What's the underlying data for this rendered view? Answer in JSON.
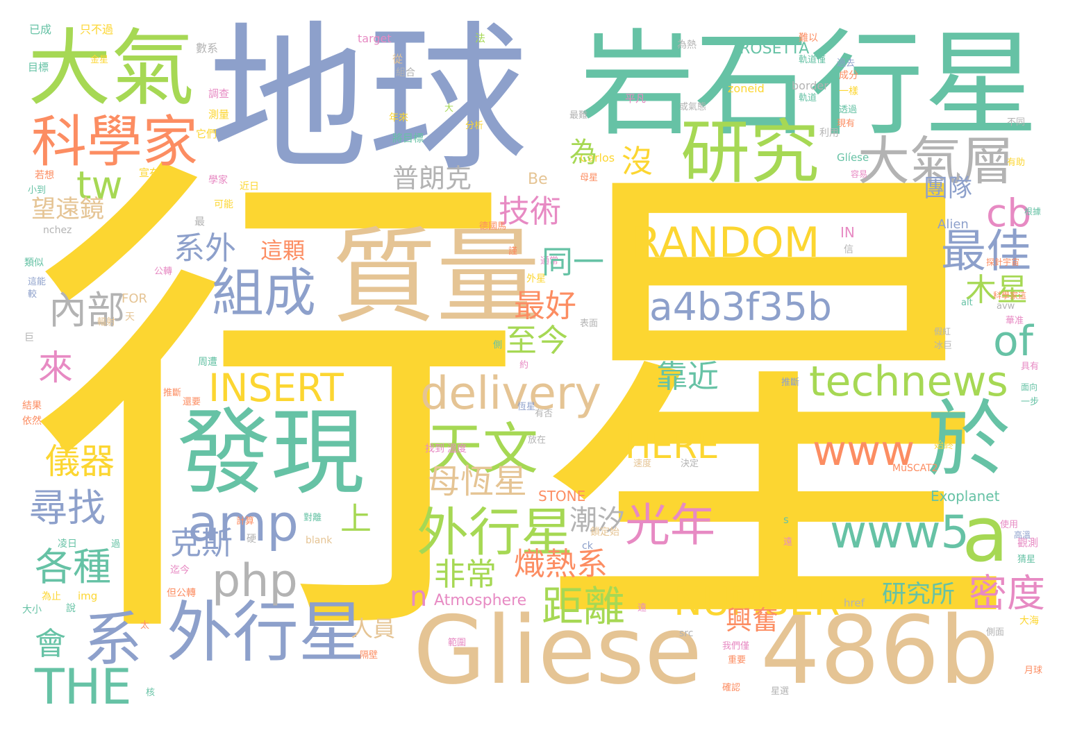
{
  "palette": {
    "yellow": "#fcd631",
    "blue": "#8da0cb",
    "green": "#66c2a5",
    "lime": "#a6d854",
    "tan": "#e5c494",
    "orange": "#fc8d62",
    "pink": "#e78ac3",
    "gray": "#b3b3b3"
  },
  "words": [
    {
      "text": "行星",
      "color": "yellow"
    },
    {
      "text": "地球",
      "color": "blue"
    },
    {
      "text": "岩石行星",
      "color": "green"
    },
    {
      "text": "Gliese",
      "color": "tan"
    },
    {
      "text": "486b",
      "color": "tan"
    },
    {
      "text": "大氣",
      "color": "lime"
    },
    {
      "text": "質量",
      "color": "tan"
    },
    {
      "text": "發現",
      "color": "green"
    },
    {
      "text": "研究",
      "color": "lime"
    },
    {
      "text": "科學家",
      "color": "orange"
    },
    {
      "text": "大氣層",
      "color": "gray"
    },
    {
      "text": "外行星",
      "color": "blue"
    },
    {
      "text": "系",
      "color": "blue"
    },
    {
      "text": "組成",
      "color": "blue"
    },
    {
      "text": "於",
      "color": "green"
    },
    {
      "text": "a",
      "color": "lime"
    },
    {
      "text": "RANDOM",
      "color": "yellow"
    },
    {
      "text": "a4b3f35b",
      "color": "blue"
    },
    {
      "text": "technews",
      "color": "lime"
    },
    {
      "text": "delivery",
      "color": "tan"
    },
    {
      "text": "www5",
      "color": "green"
    },
    {
      "text": "amp",
      "color": "blue"
    },
    {
      "text": "外行星",
      "color": "lime"
    },
    {
      "text": "天文",
      "color": "lime"
    },
    {
      "text": "www",
      "color": "orange"
    },
    {
      "text": "INSERT",
      "color": "yellow"
    },
    {
      "text": "NUMBER",
      "color": "yellow"
    },
    {
      "text": "HERE",
      "color": "yellow"
    },
    {
      "text": "THE",
      "color": "green"
    },
    {
      "text": "php",
      "color": "gray"
    },
    {
      "text": "tw",
      "color": "lime"
    },
    {
      "text": "cb",
      "color": "pink"
    },
    {
      "text": "of",
      "color": "green"
    },
    {
      "text": "最佳",
      "color": "blue"
    },
    {
      "text": "光年",
      "color": "pink"
    },
    {
      "text": "距離",
      "color": "lime"
    },
    {
      "text": "密度",
      "color": "pink"
    },
    {
      "text": "尋找",
      "color": "blue"
    },
    {
      "text": "內部",
      "color": "gray"
    },
    {
      "text": "系外",
      "color": "blue"
    },
    {
      "text": "技術",
      "color": "pink"
    },
    {
      "text": "母恆星",
      "color": "tan"
    },
    {
      "text": "普朗克",
      "color": "gray"
    },
    {
      "text": "靠近",
      "color": "green"
    },
    {
      "text": "至今",
      "color": "lime"
    },
    {
      "text": "各種",
      "color": "green"
    },
    {
      "text": "非常",
      "color": "lime"
    },
    {
      "text": "克斯",
      "color": "blue"
    },
    {
      "text": "儀器",
      "color": "yellow"
    },
    {
      "text": "來",
      "color": "pink"
    },
    {
      "text": "沒",
      "color": "yellow"
    },
    {
      "text": "木星",
      "color": "lime"
    },
    {
      "text": "望遠鏡",
      "color": "tan"
    },
    {
      "text": "團隊",
      "color": "blue"
    },
    {
      "text": "研究所",
      "color": "green"
    },
    {
      "text": "興奮",
      "color": "orange"
    },
    {
      "text": "Exoplanet",
      "color": "green"
    },
    {
      "text": "n",
      "color": "pink"
    },
    {
      "text": "上",
      "color": "lime"
    },
    {
      "text": "會",
      "color": "green"
    },
    {
      "text": "這顆",
      "color": "orange"
    },
    {
      "text": "人員",
      "color": "tan"
    },
    {
      "text": "Atmosphere",
      "color": "pink"
    },
    {
      "text": "ROSETTA",
      "color": "green"
    },
    {
      "text": "STONE",
      "color": "orange"
    },
    {
      "text": "Alien",
      "color": "blue"
    },
    {
      "text": "MuSCAT2",
      "color": "orange"
    },
    {
      "text": "target",
      "color": "pink"
    },
    {
      "text": "zoneid",
      "color": "yellow"
    },
    {
      "text": "border",
      "color": "gray"
    },
    {
      "text": "Carlos",
      "color": "yellow"
    },
    {
      "text": "Glíese",
      "color": "green"
    },
    {
      "text": "nchez",
      "color": "gray"
    },
    {
      "text": "FOR",
      "color": "tan"
    },
    {
      "text": "IN",
      "color": "pink"
    },
    {
      "text": "href",
      "color": "gray"
    },
    {
      "text": "src",
      "color": "gray"
    },
    {
      "text": "blank",
      "color": "tan"
    },
    {
      "text": "img",
      "color": "yellow"
    },
    {
      "text": "ck",
      "color": "blue"
    },
    {
      "text": "alt",
      "color": "green"
    },
    {
      "text": "avw",
      "color": "gray"
    },
    {
      "text": "Be",
      "color": "tan"
    },
    {
      "text": "已成",
      "color": "green"
    },
    {
      "text": "只不過",
      "color": "yellow"
    },
    {
      "text": "數系",
      "color": "gray"
    },
    {
      "text": "目標",
      "color": "green"
    },
    {
      "text": "金星",
      "color": "yellow"
    },
    {
      "text": "組合",
      "color": "gray"
    },
    {
      "text": "調查",
      "color": "pink"
    },
    {
      "text": "測量",
      "color": "yellow"
    },
    {
      "text": "它們",
      "color": "yellow"
    },
    {
      "text": "年來",
      "color": "yellow"
    },
    {
      "text": "將目標",
      "color": "green"
    },
    {
      "text": "分析",
      "color": "yellow"
    },
    {
      "text": "宣布",
      "color": "yellow"
    },
    {
      "text": "若想",
      "color": "orange"
    },
    {
      "text": "小到",
      "color": "green"
    },
    {
      "text": "學家",
      "color": "pink"
    },
    {
      "text": "近日",
      "color": "yellow"
    },
    {
      "text": "可能",
      "color": "yellow"
    },
    {
      "text": "類似",
      "color": "green"
    },
    {
      "text": "這能",
      "color": "blue"
    },
    {
      "text": "較",
      "color": "blue"
    },
    {
      "text": "公轉",
      "color": "pink"
    },
    {
      "text": "巨",
      "color": "gray"
    },
    {
      "text": "天",
      "color": "tan"
    },
    {
      "text": "輻射",
      "color": "tan"
    },
    {
      "text": "結果",
      "color": "orange"
    },
    {
      "text": "依然",
      "color": "orange"
    },
    {
      "text": "推斷",
      "color": "orange"
    },
    {
      "text": "周遭",
      "color": "green"
    },
    {
      "text": "決定",
      "color": "gray"
    },
    {
      "text": "速度",
      "color": "tan"
    },
    {
      "text": "找到",
      "color": "pink"
    },
    {
      "text": "溫度",
      "color": "pink"
    },
    {
      "text": "恆星",
      "color": "blue"
    },
    {
      "text": "有否",
      "color": "gray"
    },
    {
      "text": "放在",
      "color": "gray"
    },
    {
      "text": "計算",
      "color": "orange"
    },
    {
      "text": "對離",
      "color": "green"
    },
    {
      "text": "凌日",
      "color": "green"
    },
    {
      "text": "過",
      "color": "green"
    },
    {
      "text": "為止",
      "color": "yellow"
    },
    {
      "text": "大小",
      "color": "green"
    },
    {
      "text": "說",
      "color": "green"
    },
    {
      "text": "太",
      "color": "orange"
    },
    {
      "text": "範圍",
      "color": "pink"
    },
    {
      "text": "我們僅",
      "color": "pink"
    },
    {
      "text": "重要",
      "color": "orange"
    },
    {
      "text": "隔壁",
      "color": "orange"
    },
    {
      "text": "確認",
      "color": "orange"
    },
    {
      "text": "星選",
      "color": "gray"
    },
    {
      "text": "核",
      "color": "green"
    },
    {
      "text": "月球",
      "color": "orange"
    },
    {
      "text": "側面",
      "color": "gray"
    },
    {
      "text": "大海",
      "color": "yellow"
    },
    {
      "text": "觀測",
      "color": "pink"
    },
    {
      "text": "猜星",
      "color": "green"
    },
    {
      "text": "使用",
      "color": "pink"
    },
    {
      "text": "高溫",
      "color": "blue"
    },
    {
      "text": "始終",
      "color": "yellow"
    },
    {
      "text": "一步",
      "color": "green"
    },
    {
      "text": "面向",
      "color": "green"
    },
    {
      "text": "具有",
      "color": "pink"
    },
    {
      "text": "推斷",
      "color": "blue"
    },
    {
      "text": "科學家這",
      "color": "orange"
    },
    {
      "text": "探針宇宙",
      "color": "orange"
    },
    {
      "text": "假紅",
      "color": "gray"
    },
    {
      "text": "冰巨",
      "color": "gray"
    },
    {
      "text": "根據",
      "color": "green"
    },
    {
      "text": "有助",
      "color": "yellow"
    },
    {
      "text": "不同",
      "color": "gray"
    },
    {
      "text": "現有",
      "color": "orange"
    },
    {
      "text": "容易",
      "color": "pink"
    },
    {
      "text": "母星",
      "color": "orange"
    },
    {
      "text": "最難",
      "color": "gray"
    },
    {
      "text": "一樣",
      "color": "yellow"
    },
    {
      "text": "成分",
      "color": "orange"
    },
    {
      "text": "透過",
      "color": "green"
    },
    {
      "text": "過去",
      "color": "blue"
    },
    {
      "text": "難以",
      "color": "orange"
    },
    {
      "text": "為熱",
      "color": "gray"
    },
    {
      "text": "平凡",
      "color": "pink"
    },
    {
      "text": "或氣態",
      "color": "gray"
    },
    {
      "text": "軌道僅",
      "color": "green"
    },
    {
      "text": "軌道",
      "color": "green"
    },
    {
      "text": "利用",
      "color": "gray"
    },
    {
      "text": "信",
      "color": "gray"
    },
    {
      "text": "表面",
      "color": "gray"
    },
    {
      "text": "約",
      "color": "pink"
    },
    {
      "text": "德國馬",
      "color": "orange"
    },
    {
      "text": "謹",
      "color": "orange"
    },
    {
      "text": "外星",
      "color": "yellow"
    },
    {
      "text": "通常",
      "color": "pink"
    },
    {
      "text": "側",
      "color": "green"
    },
    {
      "text": "從",
      "color": "tan"
    },
    {
      "text": "法",
      "color": "lime"
    },
    {
      "text": "大",
      "color": "lime"
    },
    {
      "text": "為",
      "color": "lime"
    },
    {
      "text": "同一",
      "color": "green"
    },
    {
      "text": "最好",
      "color": "orange"
    },
    {
      "text": "熾熱系",
      "color": "orange"
    },
    {
      "text": "潮汐",
      "color": "gray"
    },
    {
      "text": "鎖定始",
      "color": "tan"
    },
    {
      "text": "硬",
      "color": "gray"
    },
    {
      "text": "迄今",
      "color": "pink"
    },
    {
      "text": "但公轉",
      "color": "orange"
    },
    {
      "text": "還要",
      "color": "orange"
    },
    {
      "text": "遠",
      "color": "pink"
    },
    {
      "text": "s",
      "color": "green"
    },
    {
      "text": "遠",
      "color": "pink"
    },
    {
      "text": "最",
      "color": "gray"
    },
    {
      "text": "華准",
      "color": "pink"
    }
  ]
}
